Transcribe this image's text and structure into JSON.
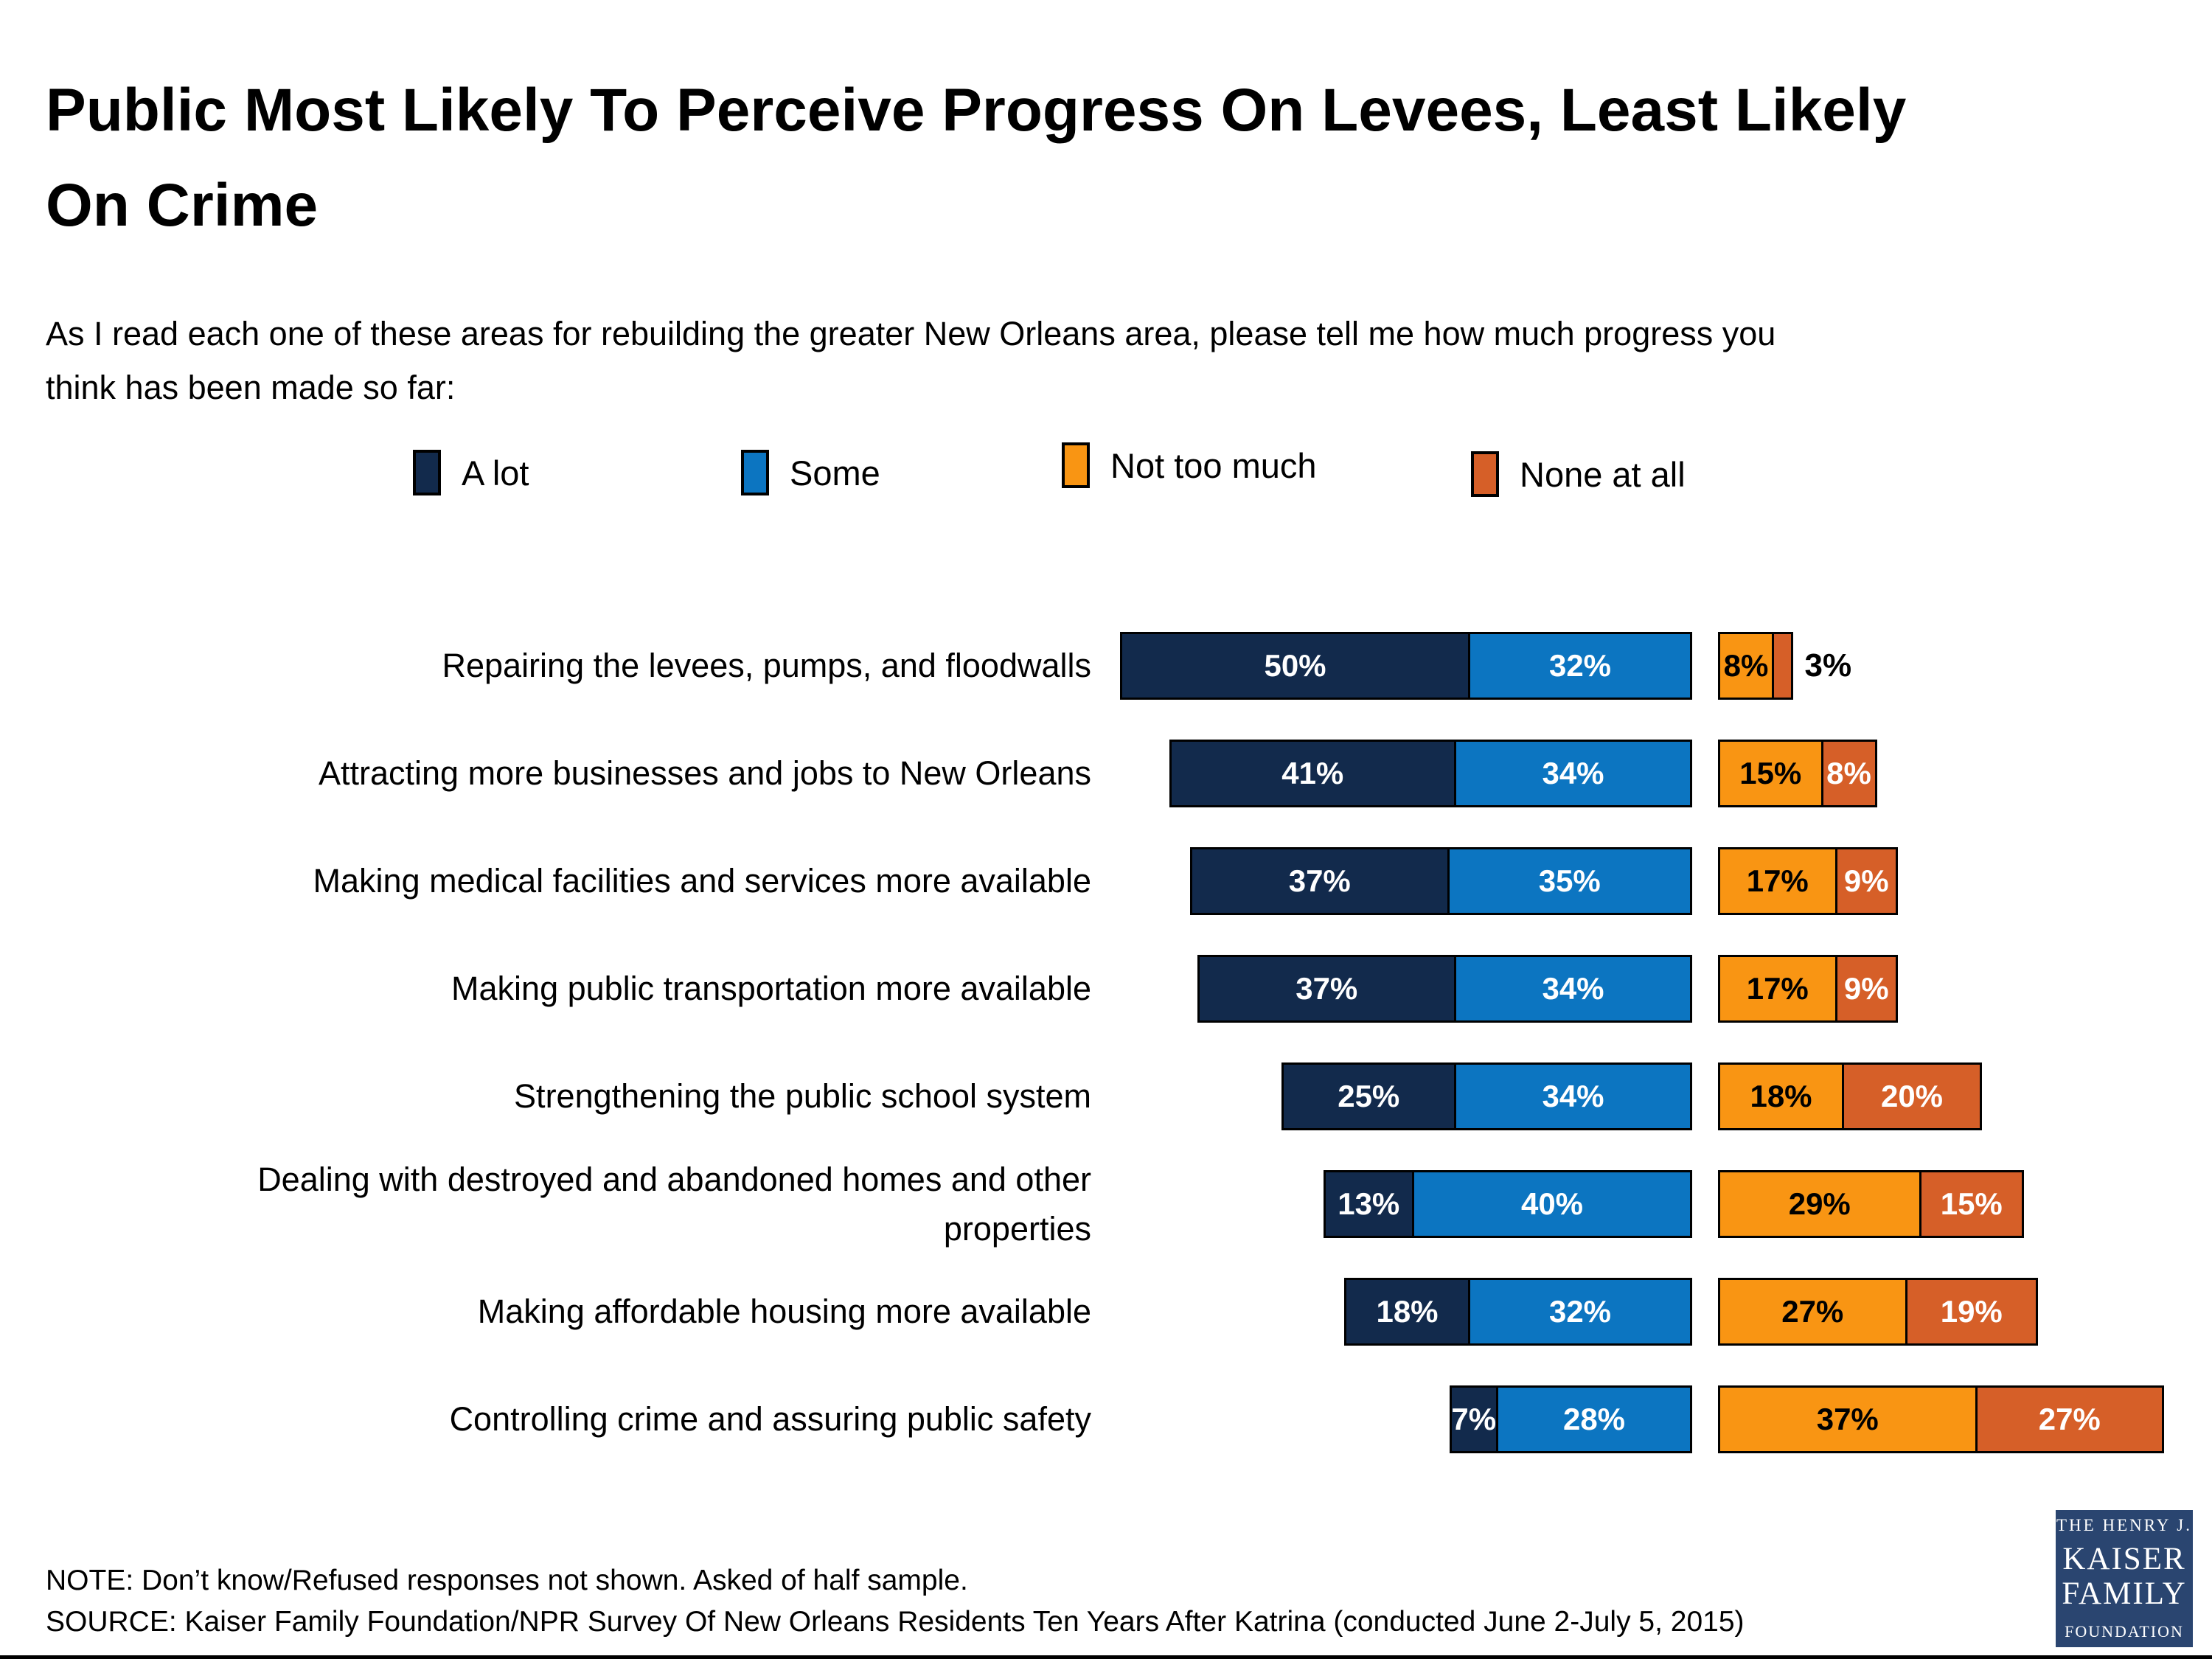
{
  "title": {
    "lines": [
      "Public Most Likely To Perceive Progress On Levees, Least Likely",
      "On Crime"
    ]
  },
  "subtitle": {
    "lines": [
      "As I read each one of these areas for rebuilding the greater New Orleans area, please tell me how much progress you",
      "think has been made so far:"
    ]
  },
  "legend": [
    {
      "label": "A lot",
      "color": "#122a4c"
    },
    {
      "label": "Some",
      "color": "#0c75c1"
    },
    {
      "label": "Not too much",
      "color": "#f99513"
    },
    {
      "label": "None at all",
      "color": "#d65f28"
    }
  ],
  "chart_data": {
    "type": "bar",
    "orientation": "horizontal-stacked-diverging",
    "unit": "%",
    "series_order": [
      "A lot",
      "Some",
      "Not too much",
      "None at all"
    ],
    "colors": {
      "a_lot": "#122a4c",
      "some": "#0c75c1",
      "not_too_much": "#f99513",
      "none_at_all": "#d65f28"
    },
    "rows": [
      {
        "label_lines": [
          "Repairing the levees, pumps, and floodwalls"
        ],
        "a_lot": 50,
        "some": 32,
        "not_too_much": 8,
        "none_at_all": 3,
        "none_label_outside": true
      },
      {
        "label_lines": [
          "Attracting more businesses and jobs to New Orleans"
        ],
        "a_lot": 41,
        "some": 34,
        "not_too_much": 15,
        "none_at_all": 8
      },
      {
        "label_lines": [
          "Making medical facilities and services more available"
        ],
        "a_lot": 37,
        "some": 35,
        "not_too_much": 17,
        "none_at_all": 9
      },
      {
        "label_lines": [
          "Making public transportation more available"
        ],
        "a_lot": 37,
        "some": 34,
        "not_too_much": 17,
        "none_at_all": 9
      },
      {
        "label_lines": [
          "Strengthening the public school system"
        ],
        "a_lot": 25,
        "some": 34,
        "not_too_much": 18,
        "none_at_all": 20
      },
      {
        "label_lines": [
          "Dealing with destroyed and abandoned homes and other",
          "properties"
        ],
        "a_lot": 13,
        "some": 40,
        "not_too_much": 29,
        "none_at_all": 15
      },
      {
        "label_lines": [
          "Making affordable housing more available"
        ],
        "a_lot": 18,
        "some": 32,
        "not_too_much": 27,
        "none_at_all": 19
      },
      {
        "label_lines": [
          "Controlling crime and assuring public safety"
        ],
        "a_lot": 7,
        "some": 28,
        "not_too_much": 37,
        "none_at_all": 27
      }
    ]
  },
  "note": "NOTE: Don’t know/Refused responses not shown. Asked of half sample.",
  "source": "SOURCE: Kaiser Family Foundation/NPR Survey Of New Orleans Residents Ten Years After Katrina (conducted June 2-July 5, 2015)",
  "logo": {
    "line1": "THE HENRY J.",
    "line2": "KAISER",
    "line3": "FAMILY",
    "line4": "FOUNDATION",
    "bg": "#2a4570"
  }
}
